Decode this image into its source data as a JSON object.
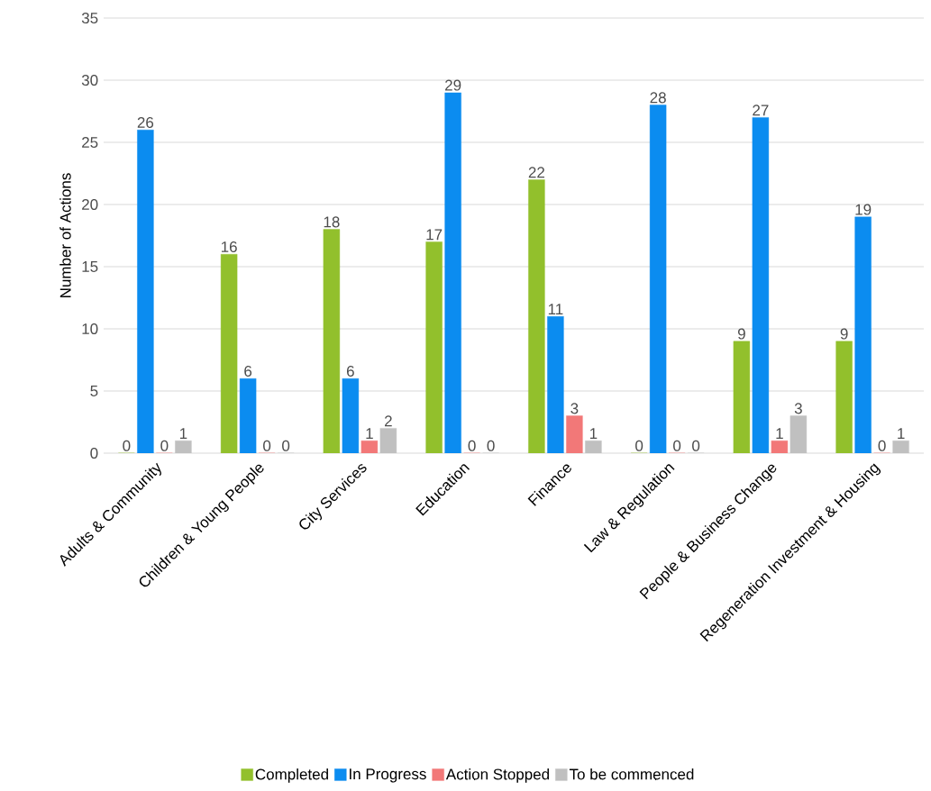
{
  "chart_data": {
    "type": "bar",
    "ylabel": "Number of Actions",
    "categories": [
      "Adults & Community",
      "Children & Young People",
      "City Services",
      "Education",
      "Finance",
      "Law & Regulation",
      "People & Business Change",
      "Regeneration Investment & Housing"
    ],
    "series": [
      {
        "name": "Completed",
        "color": "#92c02c",
        "values": [
          0,
          16,
          18,
          17,
          22,
          0,
          9,
          9
        ]
      },
      {
        "name": "In Progress",
        "color": "#0b8cf0",
        "values": [
          26,
          6,
          6,
          29,
          11,
          28,
          27,
          19
        ]
      },
      {
        "name": "Action Stopped",
        "color": "#f27878",
        "values": [
          0,
          0,
          1,
          0,
          3,
          0,
          1,
          0
        ]
      },
      {
        "name": "To be commenced",
        "color": "#c0c0c0",
        "values": [
          1,
          0,
          2,
          0,
          1,
          0,
          3,
          1
        ]
      }
    ],
    "ylim": [
      0,
      35
    ],
    "yticks": [
      0,
      5,
      10,
      15,
      20,
      25,
      30,
      35
    ],
    "grid": "y",
    "legend": "bottom",
    "data_labels": true
  }
}
